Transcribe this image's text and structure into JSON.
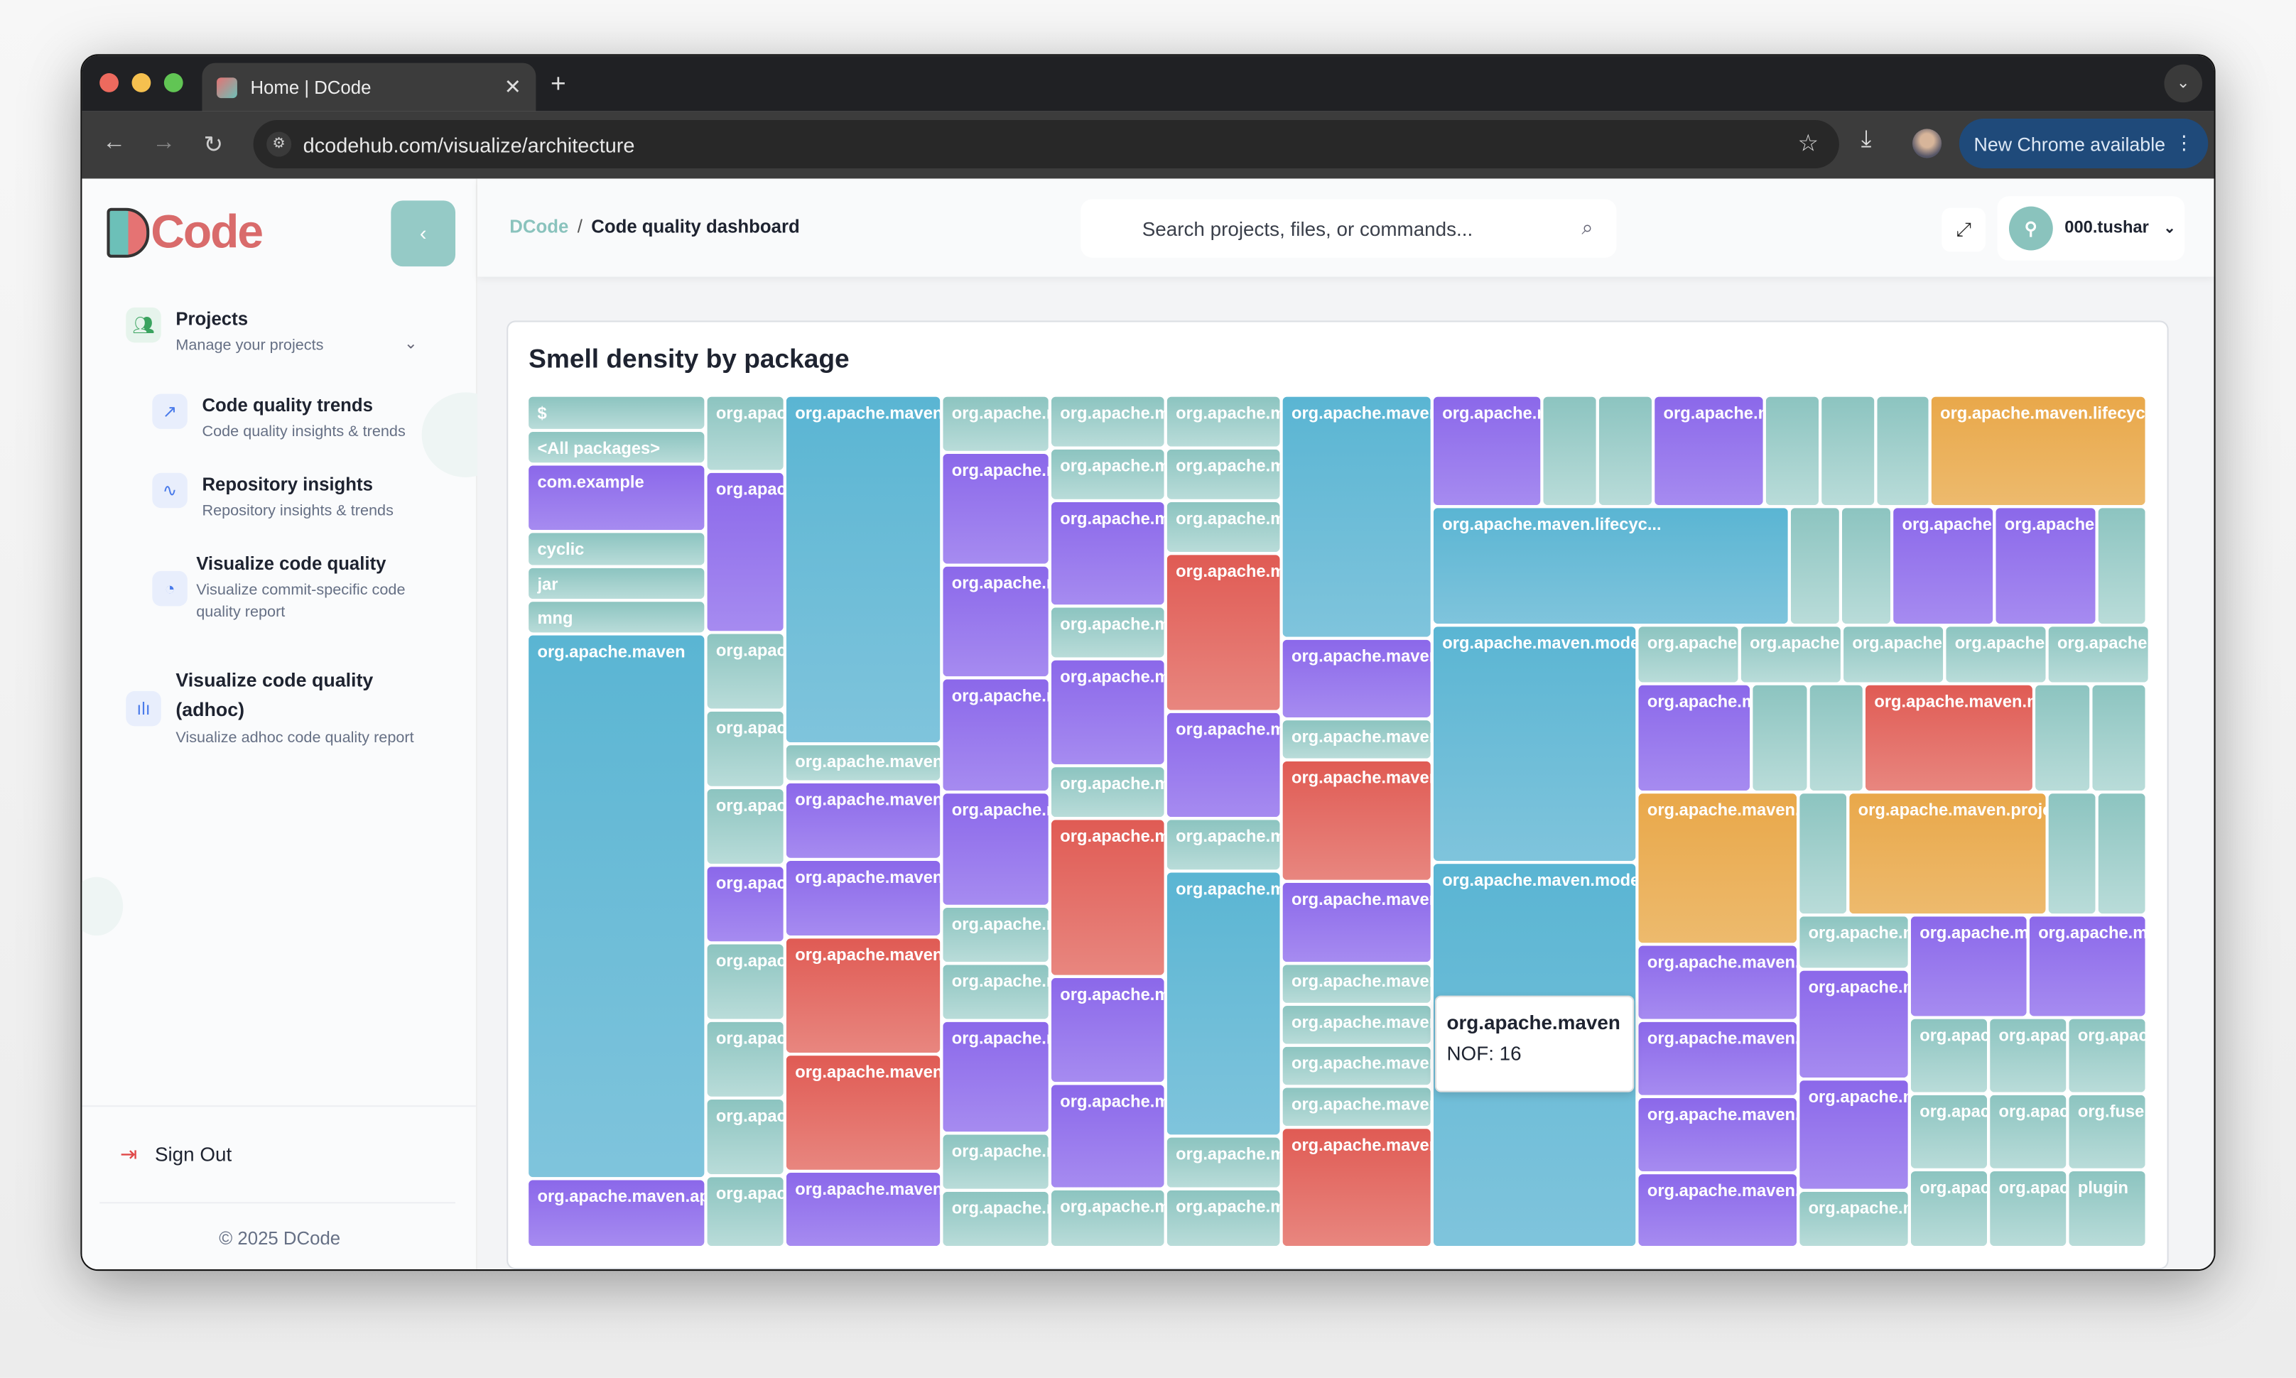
{
  "browser": {
    "tab_title": "Home | DCode",
    "url": "dcodehub.com/visualize/architecture",
    "update_button": "New Chrome available"
  },
  "sidebar": {
    "logo": "Code",
    "items": [
      {
        "title": "Projects",
        "subtitle": "Manage your projects",
        "icon": "users-icon"
      },
      {
        "title": "Code quality trends",
        "subtitle": "Code quality insights & trends",
        "icon": "trending-up-icon"
      },
      {
        "title": "Repository insights",
        "subtitle": "Repository insights & trends",
        "icon": "activity-icon"
      },
      {
        "title": "Visualize code quality",
        "subtitle": "Visualize commit-specific code quality report",
        "icon": "pie-chart-icon"
      },
      {
        "title": "Visualize code quality (adhoc)",
        "subtitle": "Visualize adhoc code quality report",
        "icon": "bar-chart-icon"
      }
    ],
    "sign_out": "Sign Out",
    "copyright": "© 2025 DCode"
  },
  "header": {
    "breadcrumb_home": "DCode",
    "breadcrumb_current": "Code quality dashboard",
    "search_placeholder": "Search projects, files, or commands...",
    "username": "000.tushar"
  },
  "chart_data": {
    "type": "treemap",
    "title": "Smell density by package",
    "colors": {
      "teal": "#8cc4c0",
      "purple": "#8b68ea",
      "blue": "#5ab5d3",
      "red": "#e05b54",
      "orange": "#e9a84a"
    },
    "tooltip": {
      "label": "org.apache.maven",
      "value": "NOF: 16"
    },
    "cells": [
      {
        "label": "$",
        "color": "teal"
      },
      {
        "label": "<All packages>",
        "color": "teal"
      },
      {
        "label": "com.example",
        "color": "purple"
      },
      {
        "label": "cyclic",
        "color": "teal"
      },
      {
        "label": "jar",
        "color": "teal"
      },
      {
        "label": "mng",
        "color": "teal"
      },
      {
        "label": "org.apache.maven",
        "color": "blue"
      },
      {
        "label": "org.apache.maven.ap",
        "color": "purple"
      },
      {
        "label": "org.apac",
        "color": "teal"
      },
      {
        "label": "org.apac",
        "color": "purple"
      },
      {
        "label": "org.apac",
        "color": "teal"
      },
      {
        "label": "org.apac",
        "color": "teal"
      },
      {
        "label": "org.apac",
        "color": "teal"
      },
      {
        "label": "org.apac",
        "color": "purple"
      },
      {
        "label": "org.apac",
        "color": "teal"
      },
      {
        "label": "org.apac",
        "color": "teal"
      },
      {
        "label": "org.apac",
        "color": "teal"
      },
      {
        "label": "org.apac",
        "color": "teal"
      },
      {
        "label": "org.apache.maven.",
        "color": "blue"
      },
      {
        "label": "org.apache.maven.",
        "color": "teal"
      },
      {
        "label": "org.apache.maven.",
        "color": "purple"
      },
      {
        "label": "org.apache.maven.",
        "color": "purple"
      },
      {
        "label": "org.apache.maven.",
        "color": "red"
      },
      {
        "label": "org.apache.maven.",
        "color": "red"
      },
      {
        "label": "org.apache.maven.",
        "color": "purple"
      },
      {
        "label": "org.apache.n",
        "color": "teal"
      },
      {
        "label": "org.apache.n",
        "color": "purple"
      },
      {
        "label": "org.apache.n",
        "color": "purple"
      },
      {
        "label": "org.apache.n",
        "color": "purple"
      },
      {
        "label": "org.apache.n",
        "color": "purple"
      },
      {
        "label": "org.apache.n",
        "color": "teal"
      },
      {
        "label": "org.apache.n",
        "color": "teal"
      },
      {
        "label": "org.apache.n",
        "color": "purple"
      },
      {
        "label": "org.apache.n",
        "color": "teal"
      },
      {
        "label": "org.apache.n",
        "color": "teal"
      },
      {
        "label": "org.apache.m",
        "color": "teal"
      },
      {
        "label": "org.apache.m",
        "color": "teal"
      },
      {
        "label": "org.apache.m",
        "color": "purple"
      },
      {
        "label": "org.apache.m",
        "color": "teal"
      },
      {
        "label": "org.apache.m",
        "color": "purple"
      },
      {
        "label": "org.apache.m",
        "color": "teal"
      },
      {
        "label": "org.apache.m",
        "color": "red"
      },
      {
        "label": "org.apache.m",
        "color": "purple"
      },
      {
        "label": "org.apache.m",
        "color": "purple"
      },
      {
        "label": "org.apache.m",
        "color": "teal"
      },
      {
        "label": "org.apache.m",
        "color": "teal"
      },
      {
        "label": "org.apache.m",
        "color": "teal"
      },
      {
        "label": "org.apache.m",
        "color": "teal"
      },
      {
        "label": "org.apache.m",
        "color": "red"
      },
      {
        "label": "org.apache.m",
        "color": "purple"
      },
      {
        "label": "org.apache.m",
        "color": "teal"
      },
      {
        "label": "org.apache.m",
        "color": "blue"
      },
      {
        "label": "org.apache.m",
        "color": "teal"
      },
      {
        "label": "org.apache.m",
        "color": "teal"
      },
      {
        "label": "org.apache.maven",
        "color": "blue"
      },
      {
        "label": "org.apache.maven",
        "color": "purple"
      },
      {
        "label": "org.apache.maven",
        "color": "teal"
      },
      {
        "label": "org.apache.maven",
        "color": "red"
      },
      {
        "label": "org.apache.maven",
        "color": "purple"
      },
      {
        "label": "org.apache.maven",
        "color": "teal"
      },
      {
        "label": "org.apache.maven",
        "color": "teal"
      },
      {
        "label": "org.apache.maven",
        "color": "teal"
      },
      {
        "label": "org.apache.maven",
        "color": "teal"
      },
      {
        "label": "org.apache.maven",
        "color": "red"
      },
      {
        "label": "org.apache.m",
        "color": "purple"
      },
      {
        "label": "",
        "color": "teal"
      },
      {
        "label": "",
        "color": "teal"
      },
      {
        "label": "org.apache.m",
        "color": "purple"
      },
      {
        "label": "",
        "color": "teal"
      },
      {
        "label": "",
        "color": "teal"
      },
      {
        "label": "",
        "color": "teal"
      },
      {
        "label": "org.apache.maven.lifecyc.",
        "color": "orange"
      },
      {
        "label": "org.apache.maven.lifecyc...",
        "color": "blue"
      },
      {
        "label": "",
        "color": "teal"
      },
      {
        "label": "",
        "color": "teal"
      },
      {
        "label": "org.apache.",
        "color": "purple"
      },
      {
        "label": "org.apache.",
        "color": "purple"
      },
      {
        "label": "",
        "color": "teal"
      },
      {
        "label": "org.apache.maven.model",
        "color": "blue"
      },
      {
        "label": "org.apache.maven.model",
        "color": "blue"
      },
      {
        "label": "org.apache.",
        "color": "teal"
      },
      {
        "label": "org.apache.",
        "color": "teal"
      },
      {
        "label": "org.apache.",
        "color": "teal"
      },
      {
        "label": "org.apache.",
        "color": "teal"
      },
      {
        "label": "org.apache.",
        "color": "teal"
      },
      {
        "label": "org.apache.m",
        "color": "purple"
      },
      {
        "label": "",
        "color": "teal"
      },
      {
        "label": "",
        "color": "teal"
      },
      {
        "label": "org.apache.maven.m",
        "color": "red"
      },
      {
        "label": "",
        "color": "teal"
      },
      {
        "label": "",
        "color": "teal"
      },
      {
        "label": "org.apache.maven.",
        "color": "orange"
      },
      {
        "label": "org.apache.maven.",
        "color": "purple"
      },
      {
        "label": "org.apache.maven.",
        "color": "purple"
      },
      {
        "label": "org.apache.maven.",
        "color": "purple"
      },
      {
        "label": "org.apache.maven.",
        "color": "purple"
      },
      {
        "label": "",
        "color": "teal"
      },
      {
        "label": "org.apache.maven.proje",
        "color": "orange"
      },
      {
        "label": "",
        "color": "teal"
      },
      {
        "label": "",
        "color": "teal"
      },
      {
        "label": "org.apache.m",
        "color": "teal"
      },
      {
        "label": "org.apache.m",
        "color": "purple"
      },
      {
        "label": "org.apache.m",
        "color": "purple"
      },
      {
        "label": "org.apache.m",
        "color": "teal"
      },
      {
        "label": "org.apache.ma",
        "color": "purple"
      },
      {
        "label": "org.apache.ma",
        "color": "purple"
      },
      {
        "label": "org.apac",
        "color": "teal"
      },
      {
        "label": "org.apac",
        "color": "teal"
      },
      {
        "label": "org.apac",
        "color": "teal"
      },
      {
        "label": "org.apac",
        "color": "teal"
      },
      {
        "label": "org.apac",
        "color": "teal"
      },
      {
        "label": "org.fuse",
        "color": "teal"
      },
      {
        "label": "org.apac",
        "color": "teal"
      },
      {
        "label": "org.apac",
        "color": "teal"
      },
      {
        "label": "plugin",
        "color": "teal"
      }
    ]
  }
}
